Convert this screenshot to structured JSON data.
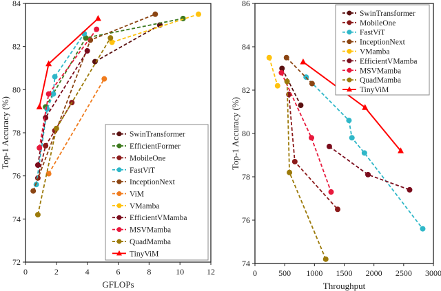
{
  "colors": {
    "SwinTransformer": "#5a1010",
    "EfficientFormer": "#3d7a1f",
    "MobileOne": "#8b1a1a",
    "FastViT": "#2fb7c8",
    "InceptionNext": "#8b4513",
    "ViM": "#f07c1e",
    "VMamba": "#ffc20e",
    "EfficientVMamba": "#7a0c1c",
    "MSVMamba": "#e8193c",
    "QuadMamba": "#9c7a0a",
    "TinyViM": "#ff0000"
  },
  "chart_data": [
    {
      "type": "line",
      "xlabel": "GFLOPs",
      "ylabel": "Top-1 Accuracy (%)",
      "xlim": [
        0,
        12
      ],
      "ylim": [
        72,
        84
      ],
      "xticks": [
        "0",
        "2",
        "4",
        "6",
        "8",
        "10",
        "12"
      ],
      "yticks": [
        "72",
        "74",
        "76",
        "78",
        "80",
        "82",
        "84"
      ],
      "legend": "bottom-right",
      "series": [
        {
          "name": "SwinTransformer",
          "x": [
            4.5,
            8.7
          ],
          "y": [
            81.3,
            83.0
          ]
        },
        {
          "name": "EfficientFormer",
          "x": [
            1.3,
            3.9,
            10.2
          ],
          "y": [
            79.2,
            82.4,
            83.3
          ]
        },
        {
          "name": "MobileOne",
          "x": [
            0.8,
            1.3,
            1.9,
            3.0
          ],
          "y": [
            75.9,
            77.4,
            78.1,
            79.4
          ]
        },
        {
          "name": "FastViT",
          "x": [
            0.7,
            1.4,
            1.8,
            1.9,
            3.8
          ],
          "y": [
            75.6,
            79.1,
            79.8,
            80.6,
            82.6
          ]
        },
        {
          "name": "InceptionNext",
          "x": [
            0.5,
            4.2,
            8.4
          ],
          "y": [
            75.3,
            82.3,
            83.5
          ]
        },
        {
          "name": "ViM",
          "x": [
            1.5,
            5.1
          ],
          "y": [
            76.1,
            80.5
          ]
        },
        {
          "name": "VMamba",
          "x": [
            5.6,
            11.2
          ],
          "y": [
            82.2,
            83.5
          ]
        },
        {
          "name": "EfficientVMamba",
          "x": [
            0.8,
            1.3,
            4.0
          ],
          "y": [
            76.5,
            78.7,
            81.8
          ]
        },
        {
          "name": "MSVMamba",
          "x": [
            0.9,
            1.5,
            4.6
          ],
          "y": [
            77.3,
            79.8,
            82.8
          ]
        },
        {
          "name": "QuadMamba",
          "x": [
            0.8,
            2.0,
            5.5
          ],
          "y": [
            74.2,
            78.2,
            82.4
          ]
        },
        {
          "name": "TinyViM",
          "x": [
            0.9,
            1.5,
            4.7
          ],
          "y": [
            79.2,
            81.2,
            83.3
          ]
        }
      ]
    },
    {
      "type": "line",
      "xlabel": "Throughput",
      "ylabel": "Top-1 Accuracy (%)",
      "xlim": [
        0,
        3000
      ],
      "ylim": [
        74,
        86
      ],
      "xticks": [
        "0",
        "500",
        "1000",
        "1500",
        "2000",
        "2500",
        "3000"
      ],
      "yticks": [
        "74",
        "76",
        "78",
        "80",
        "82",
        "84",
        "86"
      ],
      "legend": "top-right",
      "series": [
        {
          "name": "SwinTransformer",
          "x": [
            455,
            770
          ],
          "y": [
            83.0,
            81.3
          ]
        },
        {
          "name": "MobileOne",
          "x": [
            570,
            670,
            1390
          ],
          "y": [
            81.8,
            78.7,
            76.5
          ]
        },
        {
          "name": "FastViT",
          "x": [
            860,
            1580,
            1630,
            1840,
            2820
          ],
          "y": [
            82.6,
            80.6,
            79.8,
            79.1,
            75.6
          ]
        },
        {
          "name": "InceptionNext",
          "x": [
            530,
            960
          ],
          "y": [
            83.5,
            82.3
          ]
        },
        {
          "name": "VMamba",
          "x": [
            240,
            380
          ],
          "y": [
            83.5,
            82.2
          ]
        },
        {
          "name": "EfficientVMamba",
          "x": [
            1250,
            1900,
            2600
          ],
          "y": [
            79.4,
            78.1,
            77.4
          ]
        },
        {
          "name": "MSVMamba",
          "x": [
            445,
            950,
            1280
          ],
          "y": [
            82.8,
            79.8,
            77.3
          ]
        },
        {
          "name": "QuadMamba",
          "x": [
            540,
            580,
            1190
          ],
          "y": [
            82.4,
            78.2,
            74.2
          ]
        },
        {
          "name": "TinyViM",
          "x": [
            810,
            1850,
            2450
          ],
          "y": [
            83.3,
            81.2,
            79.2
          ]
        }
      ]
    }
  ]
}
